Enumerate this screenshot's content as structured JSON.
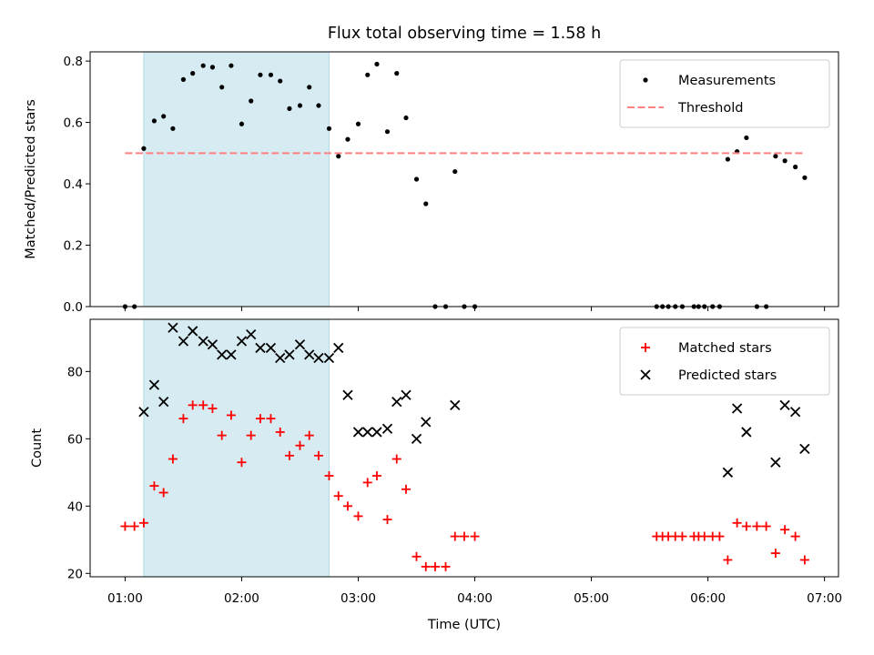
{
  "chart_data": {
    "type": "scatter",
    "title": "Flux total observing time = 1.58 h",
    "xlabel": "Time (UTC)",
    "xlim": [
      0.7,
      7.12
    ],
    "x_ticks": [
      1,
      2,
      3,
      4,
      5,
      6,
      7
    ],
    "x_tick_labels": [
      "01:00",
      "02:00",
      "03:00",
      "04:00",
      "05:00",
      "06:00",
      "07:00"
    ],
    "shaded_interval": [
      1.16,
      2.75
    ],
    "shade_color": "#add8e6",
    "top": {
      "ylabel": "Matched/Predicted stars",
      "ylim": [
        0.0,
        0.83
      ],
      "y_ticks": [
        0.0,
        0.2,
        0.4,
        0.6,
        0.8
      ],
      "y_tick_labels": [
        "0.0",
        "0.2",
        "0.4",
        "0.6",
        "0.8"
      ],
      "legend_position": "upper-right",
      "series": [
        {
          "name": "Measurements",
          "marker": "dot",
          "color": "#000000",
          "x": [
            1.0,
            1.08,
            1.16,
            1.25,
            1.33,
            1.41,
            1.5,
            1.58,
            1.67,
            1.75,
            1.83,
            1.91,
            2.0,
            2.08,
            2.16,
            2.25,
            2.33,
            2.41,
            2.5,
            2.58,
            2.66,
            2.75,
            2.83,
            2.91,
            3.0,
            3.08,
            3.16,
            3.25,
            3.33,
            3.41,
            3.5,
            3.58,
            3.66,
            3.75,
            3.83,
            3.91,
            4.0,
            5.56,
            5.61,
            5.66,
            5.72,
            5.78,
            5.88,
            5.92,
            5.97,
            6.04,
            6.1,
            6.17,
            6.25,
            6.33,
            6.42,
            6.5,
            6.58,
            6.66,
            6.75,
            6.83
          ],
          "y": [
            0.0,
            0.0,
            0.515,
            0.605,
            0.62,
            0.58,
            0.74,
            0.76,
            0.785,
            0.78,
            0.715,
            0.785,
            0.595,
            0.67,
            0.755,
            0.755,
            0.735,
            0.645,
            0.655,
            0.715,
            0.655,
            0.58,
            0.49,
            0.545,
            0.595,
            0.755,
            0.79,
            0.57,
            0.76,
            0.615,
            0.415,
            0.335,
            0.0,
            0.0,
            0.44,
            0.0,
            0.0,
            0.0,
            0.0,
            0.0,
            0.0,
            0.0,
            0.0,
            0.0,
            0.0,
            0.0,
            0.0,
            0.48,
            0.505,
            0.55,
            0.0,
            0.0,
            0.49,
            0.475,
            0.455,
            0.42
          ]
        },
        {
          "name": "Threshold",
          "marker": "dashed-line",
          "color": "#ff8080",
          "x": [
            1.0,
            6.83
          ],
          "y": [
            0.5,
            0.5
          ]
        }
      ]
    },
    "bottom": {
      "ylabel": "Count",
      "ylim": [
        19.0,
        95.5
      ],
      "y_ticks": [
        20,
        40,
        60,
        80
      ],
      "y_tick_labels": [
        "20",
        "40",
        "60",
        "80"
      ],
      "legend_position": "upper-right",
      "series": [
        {
          "name": "Matched stars",
          "marker": "plus",
          "color": "#ff0000",
          "x": [
            1.0,
            1.08,
            1.16,
            1.25,
            1.33,
            1.41,
            1.5,
            1.58,
            1.67,
            1.75,
            1.83,
            1.91,
            2.0,
            2.08,
            2.16,
            2.25,
            2.33,
            2.41,
            2.5,
            2.58,
            2.66,
            2.75,
            2.83,
            2.91,
            3.0,
            3.08,
            3.16,
            3.25,
            3.33,
            3.41,
            3.5,
            3.58,
            3.66,
            3.75,
            3.83,
            3.91,
            4.0,
            5.56,
            5.61,
            5.66,
            5.72,
            5.78,
            5.88,
            5.92,
            5.97,
            6.04,
            6.1,
            6.17,
            6.25,
            6.33,
            6.42,
            6.5,
            6.58,
            6.66,
            6.75,
            6.83
          ],
          "y": [
            34,
            34,
            35,
            46,
            44,
            54,
            66,
            70,
            70,
            69,
            61,
            67,
            53,
            61,
            66,
            66,
            62,
            55,
            58,
            61,
            55,
            49,
            43,
            40,
            37,
            47,
            49,
            36,
            54,
            45,
            25,
            22,
            22,
            22,
            31,
            31,
            31,
            31,
            31,
            31,
            31,
            31,
            31,
            31,
            31,
            31,
            31,
            24,
            35,
            34,
            34,
            34,
            26,
            33,
            31,
            24
          ]
        },
        {
          "name": "Predicted stars",
          "marker": "x",
          "color": "#000000",
          "x": [
            1.16,
            1.25,
            1.33,
            1.41,
            1.5,
            1.58,
            1.67,
            1.75,
            1.83,
            1.91,
            2.0,
            2.08,
            2.16,
            2.25,
            2.33,
            2.41,
            2.5,
            2.58,
            2.66,
            2.75,
            2.83,
            2.91,
            3.0,
            3.08,
            3.16,
            3.25,
            3.33,
            3.41,
            3.5,
            3.58,
            3.83,
            6.17,
            6.25,
            6.33,
            6.58,
            6.66,
            6.75,
            6.83
          ],
          "y": [
            68,
            76,
            71,
            93,
            89,
            92,
            89,
            88,
            85,
            85,
            89,
            91,
            87,
            87,
            84,
            85,
            88,
            85,
            84,
            84,
            87,
            73,
            62,
            62,
            62,
            63,
            71,
            73,
            60,
            65,
            70,
            50,
            69,
            62,
            53,
            70,
            68,
            57
          ]
        }
      ]
    }
  }
}
